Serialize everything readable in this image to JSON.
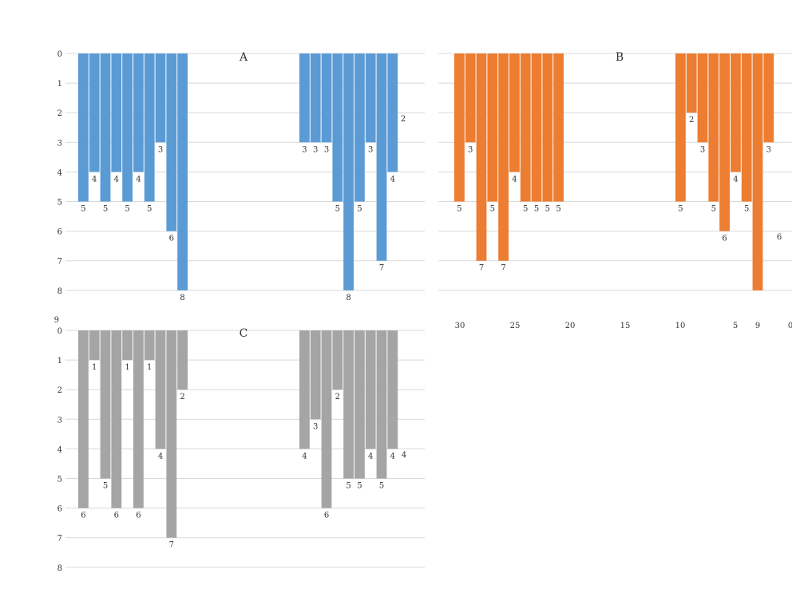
{
  "colors": {
    "A": "#5B9BD5",
    "B": "#ED7D31",
    "C": "#A5A5A5",
    "grid": "#D9D9D9",
    "text": "#333333"
  },
  "chart_data": [
    {
      "type": "bar",
      "orientation": "hanging-columns",
      "title": "A",
      "grid": true,
      "ylim": [
        0,
        8
      ],
      "y_ticks": [
        "0",
        "1",
        "2",
        "3",
        "4",
        "5",
        "6",
        "7",
        "8"
      ],
      "extra_tick_label": "9",
      "groups": [
        {
          "values": [
            5,
            4,
            5,
            4,
            5,
            4,
            5,
            3,
            6,
            8
          ],
          "labels": [
            "5",
            "4",
            "5",
            "4",
            "5",
            "4",
            "5",
            "3",
            "6",
            "8"
          ]
        },
        {
          "values": [
            3,
            3,
            3,
            5,
            8,
            5,
            3,
            7,
            4
          ],
          "labels": [
            "3",
            "3",
            "3",
            "5",
            "8",
            "5",
            "3",
            "7",
            "4"
          ]
        }
      ],
      "annotations": [
        "2"
      ]
    },
    {
      "type": "bar",
      "orientation": "hanging-columns",
      "title": "B",
      "grid": true,
      "ylim": [
        0,
        8
      ],
      "x_ticks": [
        "30",
        "25",
        "20",
        "15",
        "10",
        "5",
        "9",
        "0"
      ],
      "groups": [
        {
          "values": [
            5,
            3,
            7,
            5,
            7,
            4,
            5,
            5,
            5,
            5
          ],
          "labels": [
            "5",
            "3",
            "7",
            "5",
            "7",
            "4",
            "5",
            "5",
            "5",
            "5"
          ]
        },
        {
          "values": [
            5,
            2,
            3,
            5,
            6,
            4,
            5,
            8,
            3
          ],
          "labels": [
            "5",
            "2",
            "3",
            "5",
            "6",
            "4",
            "5",
            "",
            "3"
          ]
        }
      ],
      "annotations": [
        "6"
      ]
    },
    {
      "type": "bar",
      "orientation": "hanging-columns",
      "title": "C",
      "grid": true,
      "ylim": [
        0,
        8
      ],
      "y_ticks": [
        "0",
        "1",
        "2",
        "3",
        "4",
        "5",
        "6",
        "7",
        "8"
      ],
      "groups": [
        {
          "values": [
            6,
            1,
            5,
            6,
            1,
            6,
            1,
            4,
            7,
            2
          ],
          "labels": [
            "6",
            "1",
            "5",
            "6",
            "1",
            "6",
            "1",
            "4",
            "7",
            "2"
          ]
        },
        {
          "values": [
            4,
            3,
            6,
            2,
            5,
            5,
            4,
            5,
            4
          ],
          "labels": [
            "4",
            "3",
            "6",
            "2",
            "5",
            "5",
            "4",
            "5",
            "4"
          ]
        }
      ],
      "annotations": [
        "4"
      ]
    }
  ]
}
